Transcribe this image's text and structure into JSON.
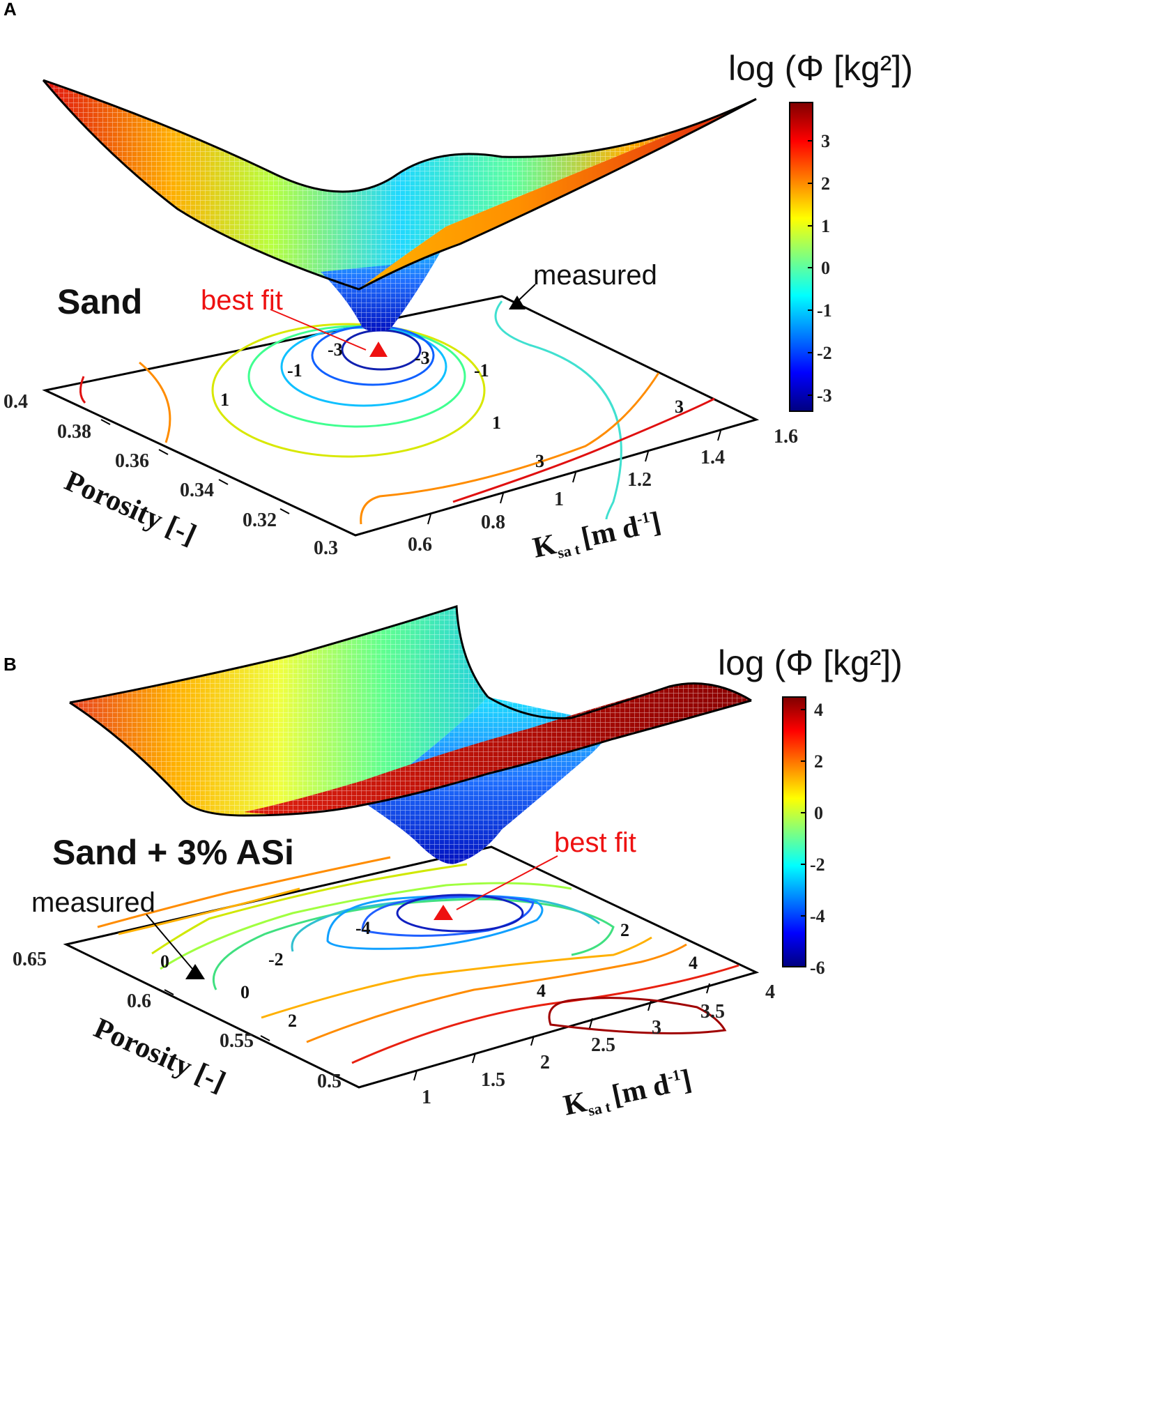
{
  "chart_data": [
    {
      "panel": "A",
      "type": "surface",
      "material": "Sand",
      "zlabel": "log (Φ [kg²])",
      "xlabel": "Porosity [-]",
      "ylabel": "Ksat [m d-1]",
      "porosity_ticks": [
        "0.4",
        "0.38",
        "0.36",
        "0.34",
        "0.32",
        "0.3"
      ],
      "ksat_ticks": [
        "0.6",
        "0.8",
        "1",
        "1.2",
        "1.4",
        "1.6"
      ],
      "xlim": [
        0.3,
        0.4
      ],
      "ylim": [
        0.5,
        1.6
      ],
      "colorbar": {
        "ticks": [
          "3",
          "2",
          "1",
          "0",
          "-1",
          "-2",
          "-3"
        ],
        "range": [
          -3.4,
          3.9
        ]
      },
      "contour_labels": [
        "-3",
        "-3",
        "-1",
        "-1",
        "1",
        "1",
        "3",
        "3"
      ],
      "best_fit": {
        "label": "best fit",
        "porosity": 0.37,
        "ksat": 1.02,
        "value": -3.3
      },
      "measured": {
        "label": "measured",
        "porosity": 0.4,
        "ksat": 1.25
      }
    },
    {
      "panel": "B",
      "type": "surface",
      "material": "Sand + 3% ASi",
      "zlabel": "log (Φ [kg²])",
      "xlabel": "Porosity [-]",
      "ylabel": "Ksat [m d-1]",
      "porosity_ticks": [
        "0.65",
        "0.6",
        "0.55",
        "0.5"
      ],
      "ksat_ticks": [
        "1",
        "1.5",
        "2",
        "2.5",
        "3",
        "3.5",
        "4"
      ],
      "xlim": [
        0.5,
        0.65
      ],
      "ylim": [
        0.8,
        4.0
      ],
      "colorbar": {
        "ticks": [
          "4",
          "2",
          "0",
          "-2",
          "-4",
          "-6"
        ],
        "range": [
          -6.2,
          4.3
        ]
      },
      "contour_labels": [
        "-4",
        "-2",
        "0",
        "0",
        "2",
        "2",
        "4",
        "4"
      ],
      "best_fit": {
        "label": "best fit",
        "porosity": 0.615,
        "ksat": 2.3,
        "value": -5.5
      },
      "measured": {
        "label": "measured",
        "porosity": 0.6,
        "ksat": 0.95
      }
    }
  ],
  "labels": {
    "panel_a": "A",
    "panel_b": "B",
    "cb_a": "log (Φ [kg²])",
    "cb_b": "log (Φ [kg²])",
    "mat_a": "Sand",
    "mat_b": "Sand + 3% ASi",
    "bestfit_a": "best fit",
    "bestfit_b": "best fit",
    "measured_a": "measured",
    "measured_b": "measured",
    "porosity_a": "Porosity [-]",
    "porosity_b": "Porosity [-]",
    "ksat_main": "K",
    "ksat_sub": "sa t",
    "ksat_units": "[m d",
    "ksat_exp": "-1",
    "ksat_close": "]"
  },
  "colors": {
    "best_fit": "#ee1111",
    "measured": "#000000",
    "colormap": "jet"
  }
}
